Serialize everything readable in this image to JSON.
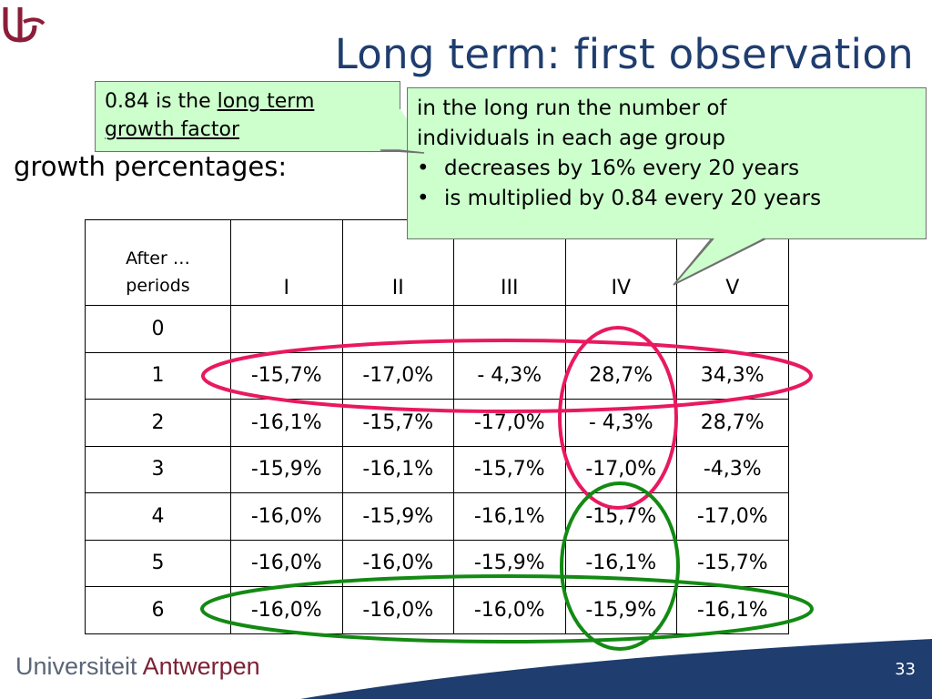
{
  "slide": {
    "title": "Long term: first observation",
    "subtitle": "growth percentages:",
    "page_number": "33"
  },
  "callout_small": {
    "prefix": "0.84 is the ",
    "underlined_1": "long term",
    "underlined_2": "growth factor"
  },
  "callout_big": {
    "line1": "in the long run the number of",
    "line2": "individuals in each age group",
    "bullets": [
      "decreases by 16% every 20 years",
      "is multiplied by 0.84 every 20 years"
    ],
    "bullet_char": "•"
  },
  "table": {
    "header_first_line1": "After …",
    "header_first_line2": "periods",
    "columns": [
      "I",
      "II",
      "III",
      "IV",
      "V"
    ],
    "rows": [
      {
        "period": "0",
        "values": [
          "",
          "",
          "",
          "",
          ""
        ]
      },
      {
        "period": "1",
        "values": [
          "-15,7%",
          "-17,0%",
          "- 4,3%",
          "28,7%",
          "34,3%"
        ]
      },
      {
        "period": "2",
        "values": [
          "-16,1%",
          "-15,7%",
          "-17,0%",
          "- 4,3%",
          "28,7%"
        ]
      },
      {
        "period": "3",
        "values": [
          "-15,9%",
          "-16,1%",
          "-15,7%",
          "-17,0%",
          "-4,3%"
        ]
      },
      {
        "period": "4",
        "values": [
          "-16,0%",
          "-15,9%",
          "-16,1%",
          "-15,7%",
          "-17,0%"
        ]
      },
      {
        "period": "5",
        "values": [
          "-16,0%",
          "-16,0%",
          "-15,9%",
          "-16,1%",
          "-15,7%"
        ]
      },
      {
        "period": "6",
        "values": [
          "-16,0%",
          "-16,0%",
          "-16,0%",
          "-15,9%",
          "-16,1%"
        ]
      }
    ]
  },
  "footer": {
    "university_part1": "Universiteit",
    "university_part2": "Antwerpen"
  },
  "colors": {
    "title": "#1f3d6e",
    "callout_fill": "#ccffcc",
    "ellipse_pink": "#e8195f",
    "ellipse_green": "#138a13",
    "footer_band": "#1f3d6e",
    "logo": "#8c1d38"
  }
}
